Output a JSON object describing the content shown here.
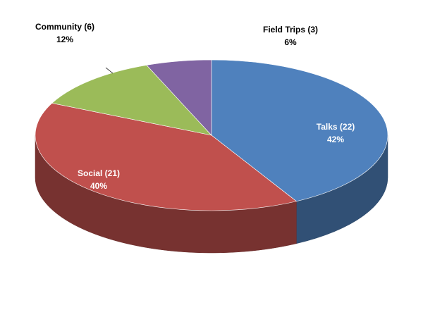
{
  "chart_data": {
    "type": "pie",
    "categories": [
      "Talks (22)",
      "Social (21)",
      "Community (6)",
      "Field Trips (3)"
    ],
    "values": [
      42,
      40,
      12,
      6
    ],
    "value_labels": [
      "42%",
      "40%",
      "12%",
      "6%"
    ],
    "colors": [
      "#4f81bd",
      "#c0504d",
      "#9bbb59",
      "#8064a2"
    ]
  }
}
